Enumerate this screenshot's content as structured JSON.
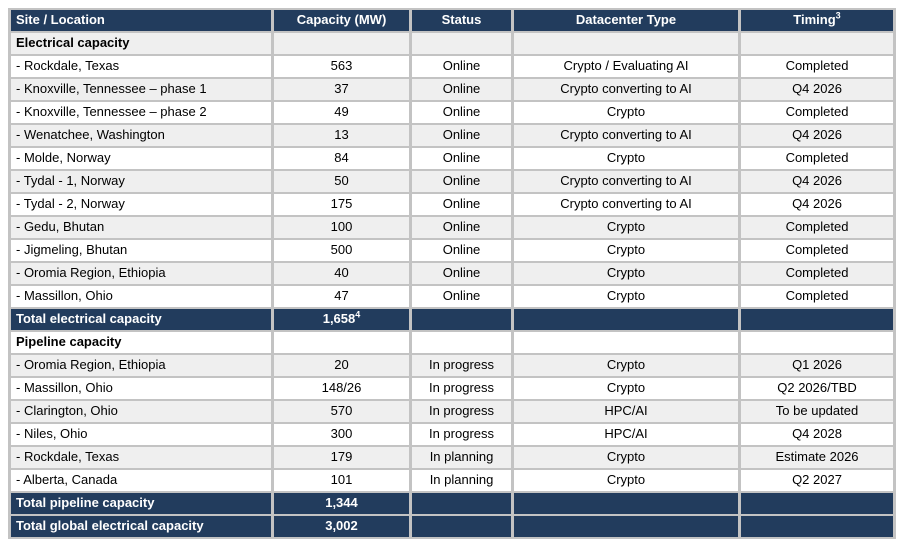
{
  "table": {
    "colors": {
      "header_bg": "#223c5d",
      "total_bg": "#223c5d",
      "row_alt_bg": "#efefef",
      "row_bg": "#ffffff",
      "grid_line": "#c3c3c3",
      "header_text": "#ffffff",
      "body_text": "#000000"
    },
    "columns": [
      {
        "label": "Site / Location"
      },
      {
        "label": "Capacity (MW)"
      },
      {
        "label": "Status"
      },
      {
        "label": "Datacenter Type"
      },
      {
        "label": "Timing",
        "superscript": "3"
      }
    ],
    "rows": [
      {
        "type": "section",
        "label": "Electrical capacity"
      },
      {
        "type": "data",
        "site": "- Rockdale, Texas",
        "capacity": "563",
        "status": "Online",
        "datacenter_type": "Crypto / Evaluating AI",
        "timing": "Completed"
      },
      {
        "type": "data",
        "site": "- Knoxville, Tennessee – phase 1",
        "capacity": "37",
        "status": "Online",
        "datacenter_type": "Crypto converting to AI",
        "timing": "Q4 2026"
      },
      {
        "type": "data",
        "site": "- Knoxville, Tennessee – phase 2",
        "capacity": "49",
        "status": "Online",
        "datacenter_type": "Crypto",
        "timing": "Completed"
      },
      {
        "type": "data",
        "site": "- Wenatchee, Washington",
        "capacity": "13",
        "status": "Online",
        "datacenter_type": "Crypto converting to AI",
        "timing": "Q4 2026"
      },
      {
        "type": "data",
        "site": "- Molde, Norway",
        "capacity": "84",
        "status": "Online",
        "datacenter_type": "Crypto",
        "timing": "Completed"
      },
      {
        "type": "data",
        "site": "- Tydal - 1, Norway",
        "capacity": "50",
        "status": "Online",
        "datacenter_type": "Crypto converting to AI",
        "timing": "Q4 2026"
      },
      {
        "type": "data",
        "site": "- Tydal - 2, Norway",
        "capacity": "175",
        "status": "Online",
        "datacenter_type": "Crypto converting to AI",
        "timing": "Q4 2026"
      },
      {
        "type": "data",
        "site": "- Gedu, Bhutan",
        "capacity": "100",
        "status": "Online",
        "datacenter_type": "Crypto",
        "timing": "Completed"
      },
      {
        "type": "data",
        "site": "- Jigmeling, Bhutan",
        "capacity": "500",
        "status": "Online",
        "datacenter_type": "Crypto",
        "timing": "Completed"
      },
      {
        "type": "data",
        "site": "- Oromia Region, Ethiopia",
        "capacity": "40",
        "status": "Online",
        "datacenter_type": "Crypto",
        "timing": "Completed"
      },
      {
        "type": "data",
        "site": "- Massillon, Ohio",
        "capacity": "47",
        "status": "Online",
        "datacenter_type": "Crypto",
        "timing": "Completed"
      },
      {
        "type": "total",
        "label": "Total electrical capacity",
        "capacity": "1,658",
        "capacity_superscript": "4"
      },
      {
        "type": "section",
        "label": "Pipeline capacity"
      },
      {
        "type": "data",
        "site": "- Oromia Region, Ethiopia",
        "capacity": "20",
        "status": "In progress",
        "datacenter_type": "Crypto",
        "timing": "Q1 2026"
      },
      {
        "type": "data",
        "site": "- Massillon, Ohio",
        "capacity": "148/26",
        "status": "In progress",
        "datacenter_type": "Crypto",
        "timing": "Q2 2026/TBD"
      },
      {
        "type": "data",
        "site": "- Clarington, Ohio",
        "capacity": "570",
        "status": "In progress",
        "datacenter_type": "HPC/AI",
        "timing": "To be updated"
      },
      {
        "type": "data",
        "site": "- Niles, Ohio",
        "capacity": "300",
        "status": "In progress",
        "datacenter_type": "HPC/AI",
        "timing": "Q4 2028"
      },
      {
        "type": "data",
        "site": "- Rockdale, Texas",
        "capacity": "179",
        "status": "In planning",
        "datacenter_type": "Crypto",
        "timing": "Estimate 2026"
      },
      {
        "type": "data",
        "site": "- Alberta, Canada",
        "capacity": "101",
        "status": "In planning",
        "datacenter_type": "Crypto",
        "timing": "Q2 2027"
      },
      {
        "type": "total",
        "label": "Total pipeline capacity",
        "capacity": "1,344"
      },
      {
        "type": "total",
        "label": "Total global electrical capacity",
        "capacity": "3,002"
      }
    ]
  }
}
